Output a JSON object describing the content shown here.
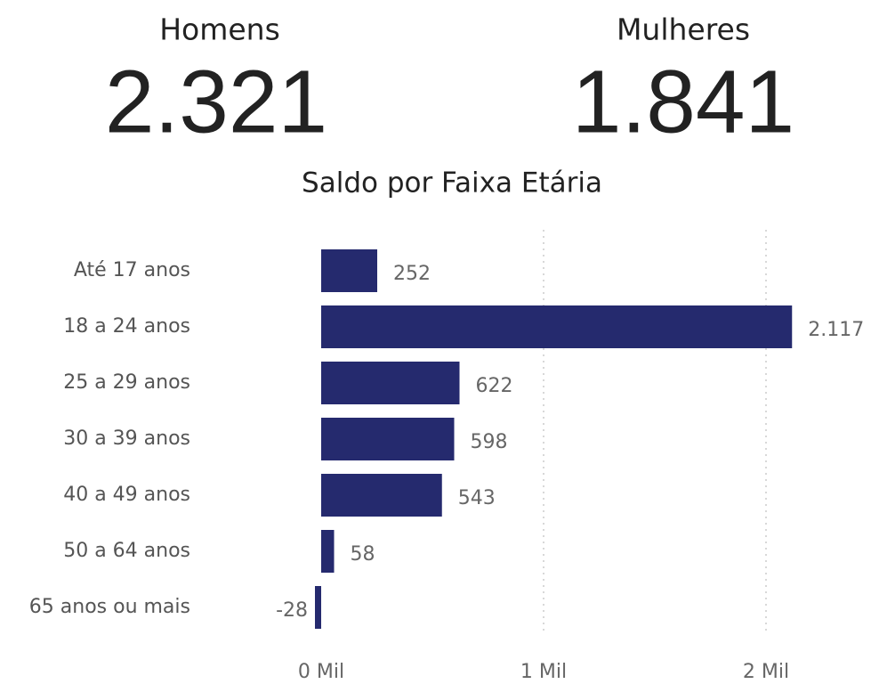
{
  "cards": [
    {
      "label": "Homens",
      "value": "2.321"
    },
    {
      "label": "Mulheres",
      "value": "1.841"
    }
  ],
  "chart_data": {
    "type": "hbar",
    "title": "Saldo por Faixa Etária",
    "categories": [
      "Até 17 anos",
      "18 a 24 anos",
      "25 a 29 anos",
      "30 a 39 anos",
      "40 a 49 anos",
      "50 a 64 anos",
      "65 anos ou mais"
    ],
    "values": [
      252,
      2117,
      622,
      598,
      543,
      58,
      -28
    ],
    "value_labels": [
      "252",
      "2.117",
      "622",
      "598",
      "543",
      "58",
      "-28"
    ],
    "color": "#252a6e",
    "xlim": [
      -100,
      2200
    ],
    "xticks": [
      {
        "value": 0,
        "label": "0 Mil"
      },
      {
        "value": 1000,
        "label": "1 Mil"
      },
      {
        "value": 2000,
        "label": "2 Mil"
      }
    ],
    "grid": true
  }
}
